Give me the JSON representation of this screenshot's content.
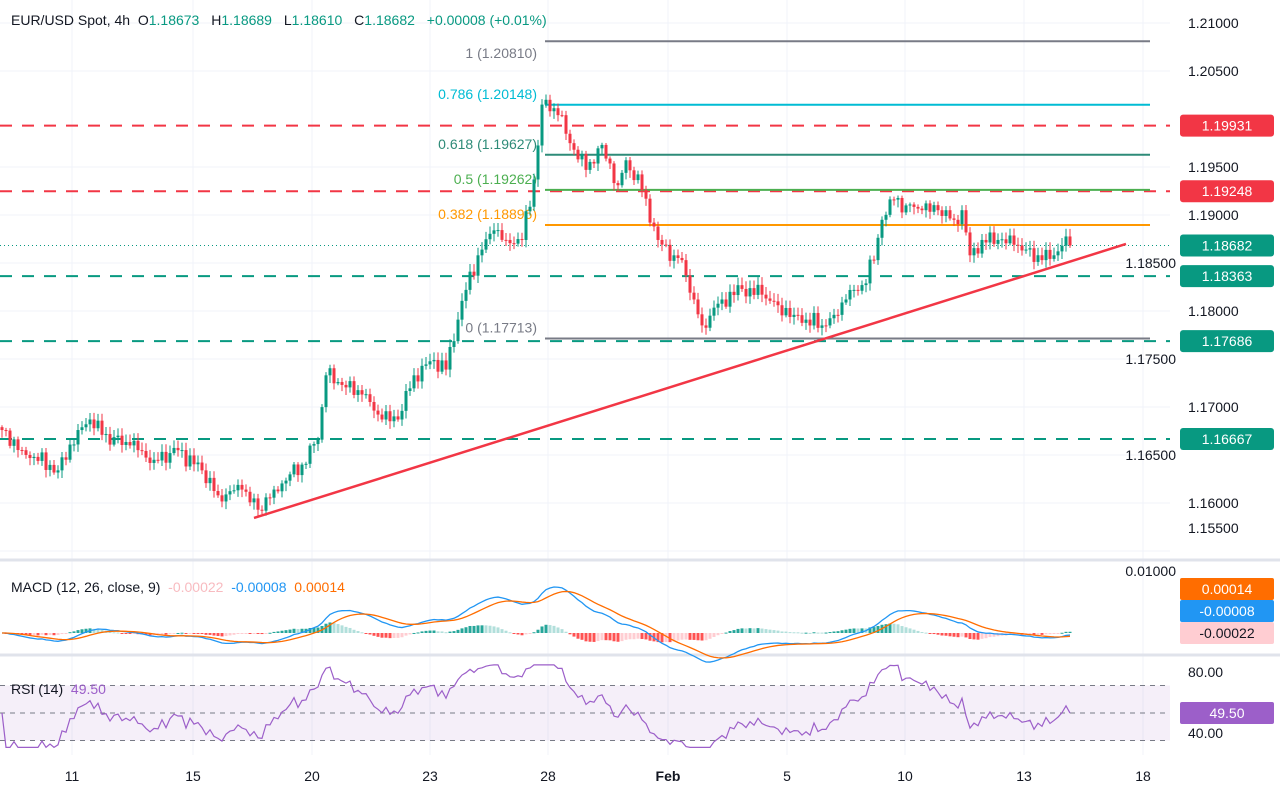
{
  "header": {
    "symbol": "EUR/USD Spot, 4h",
    "open_label": "O",
    "open": "1.18673",
    "high_label": "H",
    "high": "1.18689",
    "low_label": "L",
    "low": "1.18610",
    "close_label": "C",
    "close": "1.18682",
    "change": "+0.00008 (+0.01%)"
  },
  "colors": {
    "up": "#089981",
    "down": "#f23645",
    "support": "#089981",
    "resistance": "#f23645",
    "trendline": "#f23645",
    "macd": "#2196f3",
    "signal": "#ff6d00",
    "rsi": "#9c5fc9"
  },
  "chart_data": [
    {
      "type": "candlestick",
      "interval": "4h",
      "ylim": [
        1.155,
        1.21
      ],
      "y_ticks": [
        "1.21000",
        "1.20500",
        "1.19500",
        "1.19000",
        "1.18500",
        "1.18000",
        "1.17500",
        "1.17000",
        "1.16500",
        "1.16000",
        "1.15500"
      ],
      "x_ticks": [
        "11",
        "15",
        "20",
        "23",
        "28",
        "Feb",
        "5",
        "10",
        "13",
        "18"
      ],
      "price_path": [
        [
          0,
          1.1676
        ],
        [
          5,
          1.1655
        ],
        [
          14,
          1.1634
        ],
        [
          19,
          1.1676
        ],
        [
          22,
          1.1687
        ],
        [
          25,
          1.1671
        ],
        [
          32,
          1.166
        ],
        [
          38,
          1.1645
        ],
        [
          44,
          1.1655
        ],
        [
          50,
          1.1634
        ],
        [
          54,
          1.1608
        ],
        [
          60,
          1.1614
        ],
        [
          64,
          1.1593
        ],
        [
          68,
          1.1614
        ],
        [
          75,
          1.164
        ],
        [
          79,
          1.1666
        ],
        [
          81,
          1.1733
        ],
        [
          85,
          1.1723
        ],
        [
          90,
          1.1713
        ],
        [
          95,
          1.1687
        ],
        [
          99,
          1.1687
        ],
        [
          103,
          1.1733
        ],
        [
          108,
          1.1749
        ],
        [
          111,
          1.1739
        ],
        [
          114,
          1.1791
        ],
        [
          116,
          1.1822
        ],
        [
          119,
          1.1858
        ],
        [
          123,
          1.1884
        ],
        [
          126,
          1.1874
        ],
        [
          130,
          1.1874
        ],
        [
          133,
          1.1937
        ],
        [
          135,
          1.2015
        ],
        [
          136,
          1.202
        ],
        [
          139,
          1.2004
        ],
        [
          143,
          1.1968
        ],
        [
          146,
          1.1947
        ],
        [
          150,
          1.1973
        ],
        [
          154,
          1.1931
        ],
        [
          156,
          1.1957
        ],
        [
          160,
          1.1926
        ],
        [
          164,
          1.1874
        ],
        [
          168,
          1.1858
        ],
        [
          170,
          1.1853
        ],
        [
          173,
          1.1812
        ],
        [
          175,
          1.1785
        ],
        [
          180,
          1.1812
        ],
        [
          185,
          1.1823
        ],
        [
          190,
          1.1817
        ],
        [
          194,
          1.1806
        ],
        [
          198,
          1.1796
        ],
        [
          201,
          1.1791
        ],
        [
          205,
          1.1785
        ],
        [
          208,
          1.1796
        ],
        [
          211,
          1.1812
        ],
        [
          215,
          1.1827
        ],
        [
          218,
          1.1853
        ],
        [
          220,
          1.1895
        ],
        [
          223,
          1.1916
        ],
        [
          226,
          1.191
        ],
        [
          230,
          1.1905
        ],
        [
          234,
          1.1905
        ],
        [
          238,
          1.1895
        ],
        [
          240,
          1.1905
        ],
        [
          242,
          1.1858
        ],
        [
          245,
          1.1874
        ],
        [
          249,
          1.1874
        ],
        [
          253,
          1.1869
        ],
        [
          256,
          1.1864
        ],
        [
          260,
          1.1853
        ],
        [
          263,
          1.1858
        ],
        [
          265,
          1.1868
        ],
        [
          267,
          1.18682
        ]
      ],
      "last_price": "1.18682",
      "horizontal_levels": [
        {
          "price": 1.19931,
          "label": "1.19931",
          "kind": "resistance"
        },
        {
          "price": 1.19248,
          "label": "1.19248",
          "kind": "resistance"
        },
        {
          "price": 1.18363,
          "label": "1.18363",
          "kind": "support"
        },
        {
          "price": 1.17686,
          "label": "1.17686",
          "kind": "support"
        },
        {
          "price": 1.16667,
          "label": "1.16667",
          "kind": "support"
        }
      ],
      "fibonacci": [
        {
          "price": 1.2081,
          "label": "1 (1.20810)",
          "color": "#787b86"
        },
        {
          "price": 1.20148,
          "label": "0.786 (1.20148)",
          "color": "#00bcd4"
        },
        {
          "price": 1.19627,
          "label": "0.618 (1.19627)",
          "color": "#2e8b78"
        },
        {
          "price": 1.19262,
          "label": "0.5 (1.19262)",
          "color": "#4caf50"
        },
        {
          "price": 1.18896,
          "label": "0.382 (1.18896)",
          "color": "#ff9800"
        },
        {
          "price": 1.17713,
          "label": "0 (1.17713)",
          "color": "#787b86"
        }
      ],
      "trendline": {
        "from": [
          63,
          1.15844
        ],
        "to": [
          281,
          1.18698
        ]
      }
    },
    {
      "type": "macd",
      "title": "MACD (12, 26, close, 9)",
      "histogram": "-0.00022",
      "macd": "-0.00008",
      "signal": "0.00014",
      "y_ticks": [
        "0.01000"
      ]
    },
    {
      "type": "rsi",
      "title": "RSI (14)",
      "value": "49.50",
      "y_ticks": [
        "80.00",
        "40.00"
      ],
      "bands": [
        30,
        50,
        70
      ]
    }
  ]
}
